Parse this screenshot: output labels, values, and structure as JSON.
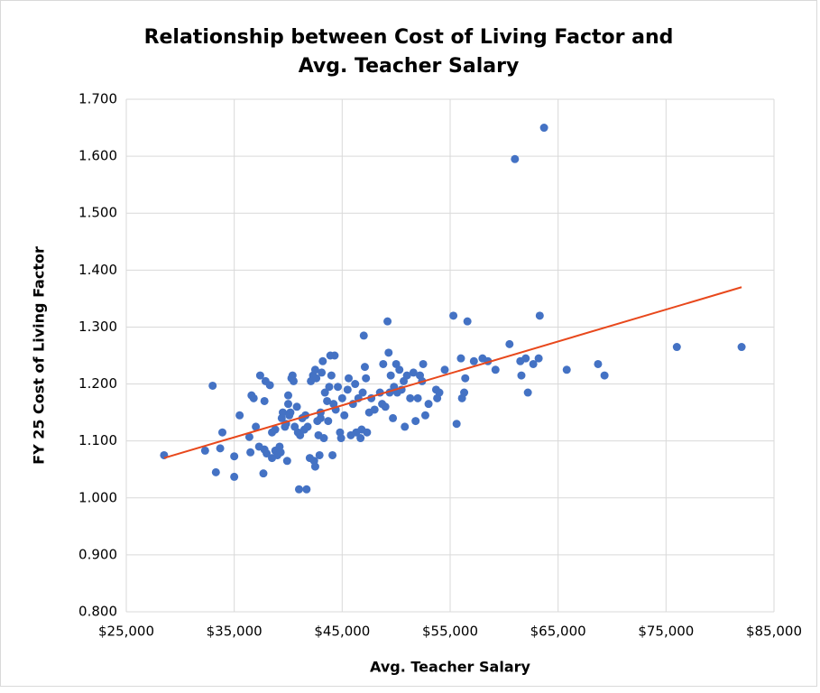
{
  "chart_data": {
    "type": "scatter",
    "title": [
      "Relationship between Cost of Living Factor and",
      "Avg. Teacher Salary"
    ],
    "xlabel": "Avg. Teacher Salary",
    "ylabel": "FY 25 Cost of Living Factor",
    "color": "#4472c4",
    "grid": true,
    "xlim": [
      25000,
      85000
    ],
    "ylim": [
      0.8,
      1.7
    ],
    "xticks": [
      {
        "value": 25000,
        "label": "$25,000"
      },
      {
        "value": 35000,
        "label": "$35,000"
      },
      {
        "value": 45000,
        "label": "$45,000"
      },
      {
        "value": 55000,
        "label": "$55,000"
      },
      {
        "value": 65000,
        "label": "$65,000"
      },
      {
        "value": 75000,
        "label": "$75,000"
      },
      {
        "value": 85000,
        "label": "$85,000"
      }
    ],
    "yticks": [
      {
        "value": 0.8,
        "label": "0.800"
      },
      {
        "value": 0.9,
        "label": "0.900"
      },
      {
        "value": 1.0,
        "label": "1.000"
      },
      {
        "value": 1.1,
        "label": "1.100"
      },
      {
        "value": 1.2,
        "label": "1.200"
      },
      {
        "value": 1.3,
        "label": "1.300"
      },
      {
        "value": 1.4,
        "label": "1.400"
      },
      {
        "value": 1.5,
        "label": "1.500"
      },
      {
        "value": 1.6,
        "label": "1.600"
      },
      {
        "value": 1.7,
        "label": "1.700"
      }
    ],
    "x": [
      28500,
      32300,
      33000,
      33300,
      33700,
      33900,
      35000,
      35000,
      35500,
      36400,
      36500,
      36600,
      36800,
      37000,
      37300,
      37400,
      37700,
      37800,
      37800,
      37900,
      38000,
      38300,
      38500,
      38500,
      38800,
      38800,
      39000,
      39200,
      39300,
      39400,
      39500,
      39700,
      39800,
      39900,
      40000,
      40000,
      40100,
      40200,
      40300,
      40400,
      40500,
      40600,
      40800,
      40900,
      41000,
      41100,
      41300,
      41500,
      41600,
      41700,
      41800,
      42000,
      42100,
      42300,
      42400,
      42500,
      42500,
      42600,
      42700,
      42800,
      42900,
      43000,
      43000,
      43100,
      43200,
      43300,
      43400,
      43600,
      43700,
      43800,
      43900,
      44000,
      44100,
      44200,
      44300,
      44400,
      44600,
      44800,
      44900,
      45000,
      45200,
      45500,
      45600,
      45800,
      46000,
      46200,
      46300,
      46500,
      46700,
      46800,
      46900,
      47000,
      47100,
      47200,
      47300,
      47500,
      47700,
      48000,
      48500,
      48700,
      48800,
      49000,
      49200,
      49300,
      49400,
      49500,
      49700,
      49800,
      50000,
      50100,
      50300,
      50500,
      50700,
      50800,
      51000,
      51300,
      51600,
      51800,
      52000,
      52200,
      52400,
      52500,
      52700,
      53000,
      53700,
      53800,
      54000,
      54500,
      55300,
      55600,
      56000,
      56100,
      56300,
      56400,
      56600,
      57200,
      58000,
      58500,
      59200,
      60500,
      61000,
      61500,
      61600,
      62000,
      62200,
      62700,
      63200,
      63300,
      63700,
      65800,
      68700,
      69300,
      76000,
      82000
    ],
    "values": [
      1.075,
      1.083,
      1.197,
      1.045,
      1.087,
      1.115,
      1.037,
      1.073,
      1.145,
      1.107,
      1.08,
      1.18,
      1.175,
      1.125,
      1.09,
      1.215,
      1.043,
      1.085,
      1.17,
      1.205,
      1.078,
      1.198,
      1.115,
      1.07,
      1.083,
      1.12,
      1.075,
      1.09,
      1.08,
      1.14,
      1.15,
      1.125,
      1.13,
      1.065,
      1.18,
      1.165,
      1.145,
      1.15,
      1.21,
      1.215,
      1.205,
      1.125,
      1.16,
      1.115,
      1.015,
      1.11,
      1.14,
      1.12,
      1.145,
      1.015,
      1.125,
      1.07,
      1.205,
      1.215,
      1.065,
      1.055,
      1.225,
      1.21,
      1.135,
      1.11,
      1.075,
      1.14,
      1.15,
      1.22,
      1.24,
      1.105,
      1.185,
      1.17,
      1.135,
      1.195,
      1.25,
      1.215,
      1.075,
      1.165,
      1.25,
      1.155,
      1.195,
      1.115,
      1.105,
      1.175,
      1.145,
      1.19,
      1.21,
      1.11,
      1.165,
      1.2,
      1.115,
      1.175,
      1.105,
      1.12,
      1.185,
      1.285,
      1.23,
      1.21,
      1.115,
      1.15,
      1.175,
      1.155,
      1.185,
      1.165,
      1.235,
      1.16,
      1.31,
      1.255,
      1.185,
      1.215,
      1.14,
      1.195,
      1.235,
      1.185,
      1.225,
      1.19,
      1.205,
      1.125,
      1.215,
      1.175,
      1.22,
      1.135,
      1.175,
      1.215,
      1.205,
      1.235,
      1.145,
      1.165,
      1.19,
      1.175,
      1.185,
      1.225,
      1.32,
      1.13,
      1.245,
      1.175,
      1.185,
      1.21,
      1.31,
      1.24,
      1.245,
      1.24,
      1.225,
      1.27,
      1.595,
      1.24,
      1.215,
      1.245,
      1.185,
      1.235,
      1.245,
      1.32,
      1.65,
      1.225,
      1.235,
      1.215,
      1.265,
      1.265
    ],
    "trendline": {
      "color": "#e8481c",
      "x": [
        28500,
        82000
      ],
      "y": [
        1.07,
        1.37
      ]
    }
  }
}
